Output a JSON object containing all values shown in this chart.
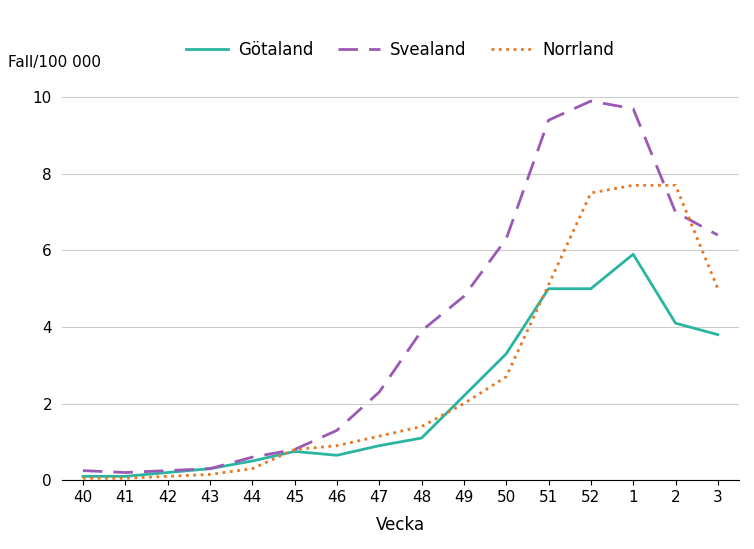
{
  "x_labels": [
    "40",
    "41",
    "42",
    "43",
    "44",
    "45",
    "46",
    "47",
    "48",
    "49",
    "50",
    "51",
    "52",
    "1",
    "2",
    "3"
  ],
  "x_positions": [
    0,
    1,
    2,
    3,
    4,
    5,
    6,
    7,
    8,
    9,
    10,
    11,
    12,
    13,
    14,
    15
  ],
  "gotaland": [
    0.1,
    0.1,
    0.2,
    0.3,
    0.5,
    0.75,
    0.65,
    0.9,
    1.1,
    2.2,
    3.3,
    5.0,
    5.0,
    5.9,
    4.1,
    3.8
  ],
  "svealand": [
    0.25,
    0.2,
    0.25,
    0.3,
    0.6,
    0.8,
    1.3,
    2.3,
    3.9,
    4.8,
    6.3,
    9.4,
    9.9,
    9.7,
    7.0,
    6.4
  ],
  "norrland": [
    0.05,
    0.05,
    0.1,
    0.15,
    0.3,
    0.8,
    0.9,
    1.15,
    1.4,
    2.0,
    2.7,
    5.1,
    7.5,
    7.7,
    7.7,
    5.0
  ],
  "gotaland_color": "#2ab5a0",
  "svealand_color": "#9b59b6",
  "norrland_color": "#e87722",
  "ylabel": "Fall/100 000",
  "xlabel": "Vecka",
  "ylim": [
    0,
    10.5
  ],
  "yticks": [
    0,
    2,
    4,
    6,
    8,
    10
  ],
  "legend_labels": [
    "Götaland",
    "Svealand",
    "Norrland"
  ],
  "background_color": "#ffffff"
}
